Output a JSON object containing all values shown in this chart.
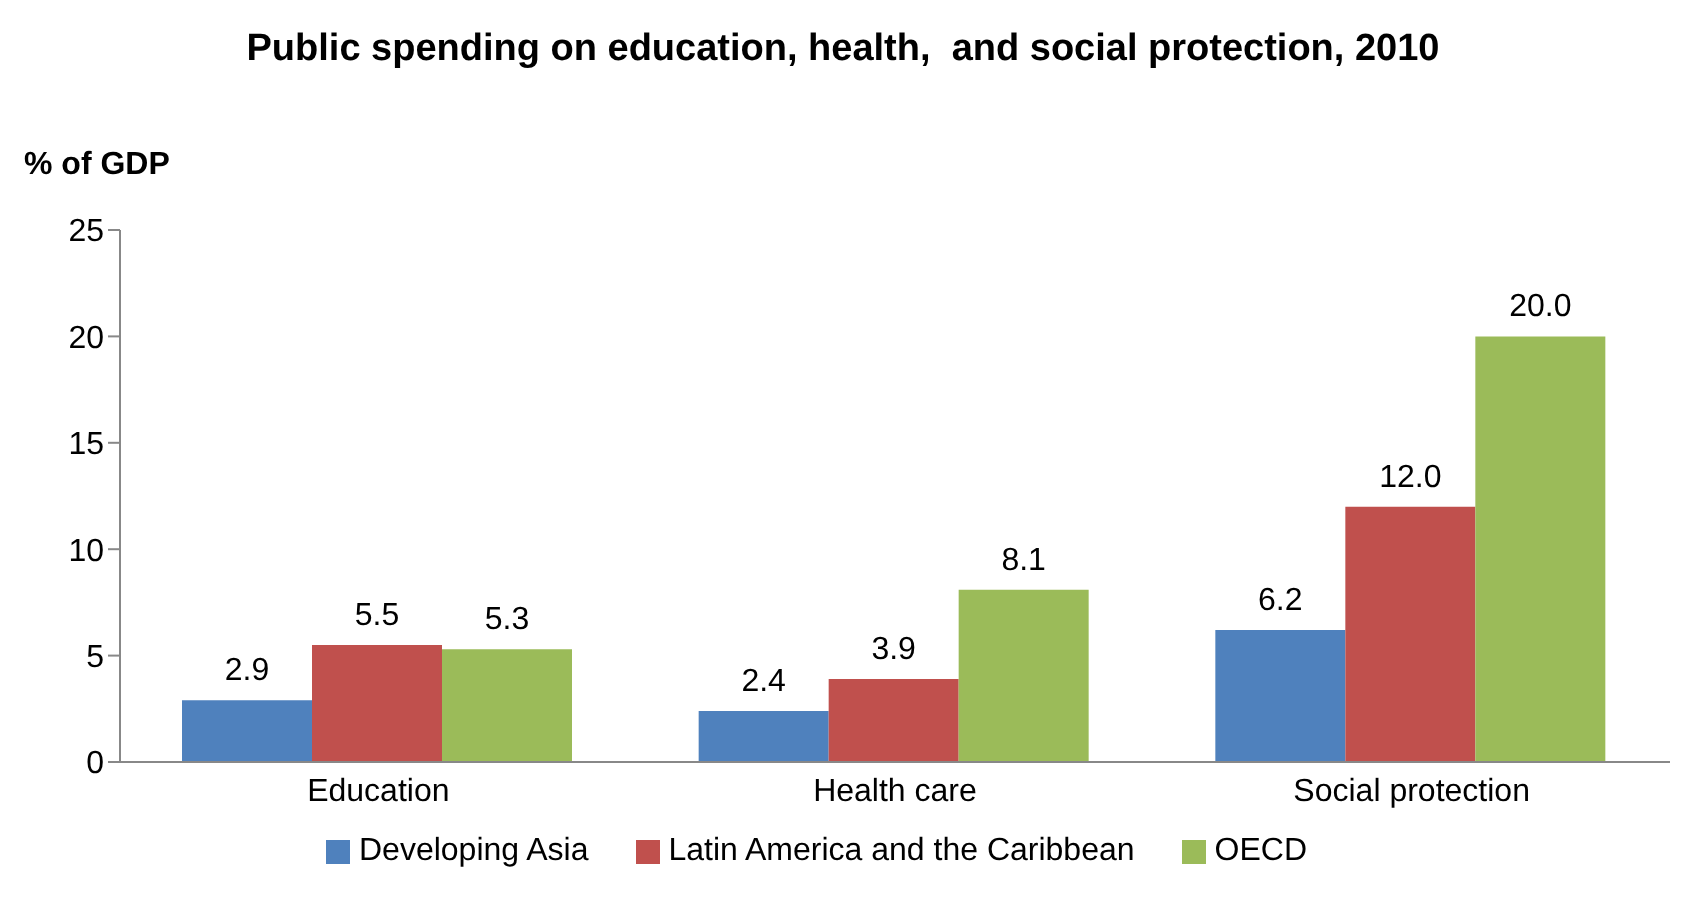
{
  "chart_data": {
    "type": "bar",
    "title": "Public spending on education, health,  and social protection, 2010",
    "ylabel": "% of GDP",
    "categories": [
      "Education",
      "Health care",
      "Social protection"
    ],
    "series": [
      {
        "name": "Developing Asia",
        "color": "#4f81bd",
        "values": [
          2.9,
          2.4,
          6.2
        ],
        "value_labels": [
          "2.9",
          "2.4",
          "6.2"
        ]
      },
      {
        "name": "Latin America and the Caribbean",
        "color": "#c0504d",
        "values": [
          5.5,
          3.9,
          12.0
        ],
        "value_labels": [
          "5.5",
          "3.9",
          "12.0"
        ]
      },
      {
        "name": "OECD",
        "color": "#9bbb59",
        "values": [
          5.3,
          8.1,
          20.0
        ],
        "value_labels": [
          "5.3",
          "8.1",
          "20.0"
        ]
      }
    ],
    "ylim": [
      0,
      25
    ],
    "yticks": [
      0,
      5,
      10,
      15,
      20,
      25
    ],
    "grid": false,
    "legend": "bottom"
  }
}
